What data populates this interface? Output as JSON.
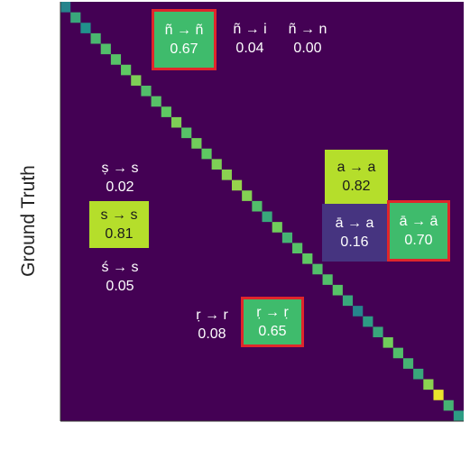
{
  "chart_data": {
    "type": "heatmap",
    "ylabel": "Ground Truth",
    "xlabel": "",
    "colormap": "viridis",
    "num_classes": 40,
    "diagonal_values": [
      0.45,
      0.6,
      0.5,
      0.67,
      0.7,
      0.72,
      0.75,
      0.8,
      0.7,
      0.72,
      0.75,
      0.8,
      0.72,
      0.78,
      0.75,
      0.8,
      0.82,
      0.84,
      0.81,
      0.7,
      0.6,
      0.78,
      0.65,
      0.72,
      0.75,
      0.7,
      0.7,
      0.72,
      0.6,
      0.45,
      0.55,
      0.6,
      0.78,
      0.7,
      0.65,
      0.6,
      0.82,
      0.97,
      0.65,
      0.55
    ],
    "annotations": [
      {
        "pair": "ñ → ñ",
        "value": "0.67",
        "highlight": true,
        "fill": "#3fbb6c"
      },
      {
        "pair": "ñ → i",
        "value": "0.04",
        "highlight": false,
        "fill": null
      },
      {
        "pair": "ñ → n",
        "value": "0.00",
        "highlight": false,
        "fill": null
      },
      {
        "pair": "ṣ → s",
        "value": "0.02",
        "highlight": false,
        "fill": null
      },
      {
        "pair": "s → s",
        "value": "0.81",
        "highlight": false,
        "fill": "#b5de2b"
      },
      {
        "pair": "ś → s",
        "value": "0.05",
        "highlight": false,
        "fill": null
      },
      {
        "pair": "a → a",
        "value": "0.82",
        "highlight": false,
        "fill": "#b5de2b"
      },
      {
        "pair": "ā → a",
        "value": "0.16",
        "highlight": false,
        "fill": "#463480"
      },
      {
        "pair": "ā → ā",
        "value": "0.70",
        "highlight": true,
        "fill": "#3fbb6c"
      },
      {
        "pair": "ṛ → r",
        "value": "0.08",
        "highlight": false,
        "fill": null
      },
      {
        "pair": "ṛ → ṛ",
        "value": "0.65",
        "highlight": true,
        "fill": "#3fbb6c"
      }
    ]
  }
}
